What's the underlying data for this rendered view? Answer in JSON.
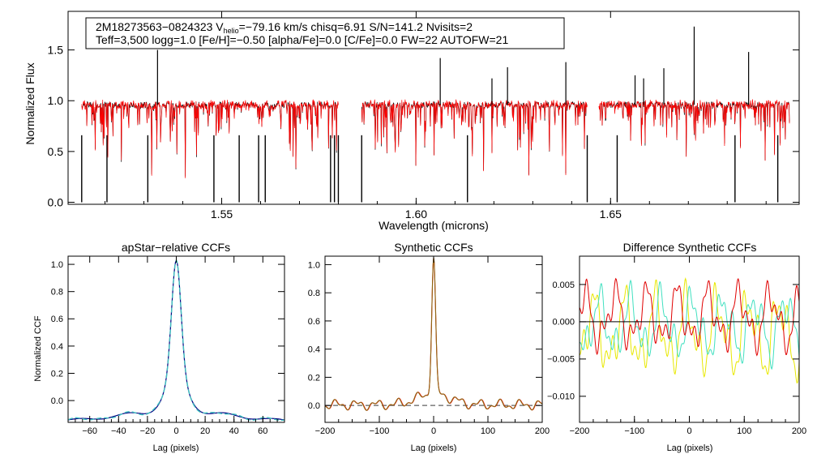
{
  "colors": {
    "axis": "#000000",
    "obs": "#000000",
    "model": "#ff0000",
    "ccf_a": "#000080",
    "ccf_b": "#40c0c0",
    "syn_a": "#ff0000",
    "syn_b": "#8b6914",
    "dash": "#606060",
    "diff_a": "#e00000",
    "diff_b": "#40e0c0",
    "diff_c": "#e8e800"
  },
  "chart_data": [
    {
      "type": "line",
      "id": "spectrum",
      "title": "",
      "xlabel": "Wavelength (microns)",
      "ylabel": "Normalized Flux",
      "xlim": [
        1.5105,
        1.6985
      ],
      "ylim": [
        -0.02,
        1.88
      ],
      "xticks": [
        {
          "v": 1.55,
          "label": "1.55"
        },
        {
          "v": 1.6,
          "label": "1.60"
        },
        {
          "v": 1.65,
          "label": "1.65"
        }
      ],
      "yticks": [
        {
          "v": 0.0,
          "label": "0.0"
        },
        {
          "v": 0.5,
          "label": "0.5"
        },
        {
          "v": 1.0,
          "label": "1.0"
        },
        {
          "v": 1.5,
          "label": "1.5"
        }
      ],
      "annotation": {
        "line1_pre": "2M18273563−0824323  V",
        "line1_sub": "helio",
        "line1_post": "=−79.16 km/s  chisq=6.91  S/N=141.2  Nvisits=2",
        "line2": "Teff=3,500 logg=1.0 [Fe/H]=−0.50 [alpha/Fe]=0.0 [C/Fe]=0.0 FW=22 AUTOFW=21"
      },
      "chips": [
        [
          1.514,
          1.58
        ],
        [
          1.586,
          1.644
        ],
        [
          1.647,
          1.696
        ]
      ],
      "continuum": 0.96,
      "emission_spikes": [
        {
          "x": 1.5335,
          "y": 1.5
        },
        {
          "x": 1.6062,
          "y": 1.42
        },
        {
          "x": 1.6195,
          "y": 1.22
        },
        {
          "x": 1.6235,
          "y": 1.33
        },
        {
          "x": 1.6385,
          "y": 1.38
        },
        {
          "x": 1.6563,
          "y": 1.25
        },
        {
          "x": 1.6585,
          "y": 1.22
        },
        {
          "x": 1.6637,
          "y": 1.32
        },
        {
          "x": 1.6715,
          "y": 1.73
        },
        {
          "x": 1.6855,
          "y": 1.48
        }
      ],
      "bad_pixel_drops": [
        1.514,
        1.5205,
        1.531,
        1.548,
        1.5545,
        1.5595,
        1.5612,
        1.578,
        1.579,
        1.58,
        1.586,
        1.6132,
        1.644,
        1.6517,
        1.682,
        1.693
      ]
    },
    {
      "type": "line",
      "id": "apstar_ccf",
      "title": "apStar−relative CCFs",
      "xlabel": "Lag (pixels)",
      "ylabel": "Normalized CCF",
      "xlim": [
        -75,
        75
      ],
      "ylim": [
        -0.16,
        1.06
      ],
      "xticks": [
        {
          "v": -60,
          "label": "−60"
        },
        {
          "v": -40,
          "label": "−40"
        },
        {
          "v": -20,
          "label": "−20"
        },
        {
          "v": 0,
          "label": "0"
        },
        {
          "v": 20,
          "label": "20"
        },
        {
          "v": 40,
          "label": "40"
        },
        {
          "v": 60,
          "label": "60"
        }
      ],
      "yticks": [
        {
          "v": 0.0,
          "label": "0.0"
        },
        {
          "v": 0.2,
          "label": "0.2"
        },
        {
          "v": 0.4,
          "label": "0.4"
        },
        {
          "v": 0.6,
          "label": "0.6"
        },
        {
          "v": 0.8,
          "label": "0.8"
        },
        {
          "v": 1.0,
          "label": "1.0"
        }
      ],
      "series": [
        {
          "name": "ccf-a",
          "color": "#000080",
          "dash": false
        },
        {
          "name": "ccf-b",
          "color": "#40c0c0",
          "dash": true
        }
      ]
    },
    {
      "type": "line",
      "id": "synthetic_ccf",
      "title": "Synthetic CCFs",
      "xlabel": "Lag (pixels)",
      "ylabel": "",
      "xlim": [
        -200,
        200
      ],
      "ylim": [
        -0.12,
        1.06
      ],
      "xticks": [
        {
          "v": -200,
          "label": "−200"
        },
        {
          "v": -100,
          "label": "−100"
        },
        {
          "v": 0,
          "label": "0"
        },
        {
          "v": 100,
          "label": "100"
        },
        {
          "v": 200,
          "label": "200"
        }
      ],
      "yticks": [
        {
          "v": 0.0,
          "label": "0.0"
        },
        {
          "v": 0.2,
          "label": "0.2"
        },
        {
          "v": 0.4,
          "label": "0.4"
        },
        {
          "v": 0.6,
          "label": "0.6"
        },
        {
          "v": 0.8,
          "label": "0.8"
        },
        {
          "v": 1.0,
          "label": "1.0"
        }
      ],
      "reference_level": 0.0,
      "series": [
        {
          "name": "syn-a",
          "color": "#ff0000"
        },
        {
          "name": "syn-b",
          "color": "#8b6914"
        }
      ]
    },
    {
      "type": "line",
      "id": "difference_ccf",
      "title": "Difference Synthetic CCFs",
      "xlabel": "Lag (pixels)",
      "ylabel": "",
      "xlim": [
        -200,
        200
      ],
      "ylim": [
        -0.0135,
        0.0088
      ],
      "xticks": [
        {
          "v": -200,
          "label": "−200"
        },
        {
          "v": -100,
          "label": "−100"
        },
        {
          "v": 0,
          "label": "0"
        },
        {
          "v": 100,
          "label": "100"
        },
        {
          "v": 200,
          "label": "200"
        }
      ],
      "yticks": [
        {
          "v": -0.01,
          "label": "−0.010"
        },
        {
          "v": -0.005,
          "label": "−0.005"
        },
        {
          "v": 0.0,
          "label": "0.000"
        },
        {
          "v": 0.005,
          "label": "0.005"
        }
      ],
      "zero_line": 0.0,
      "series": [
        {
          "name": "diff-red",
          "color": "#e00000"
        },
        {
          "name": "diff-cyan",
          "color": "#40e0c0"
        },
        {
          "name": "diff-yellow",
          "color": "#e8e800"
        }
      ]
    }
  ]
}
